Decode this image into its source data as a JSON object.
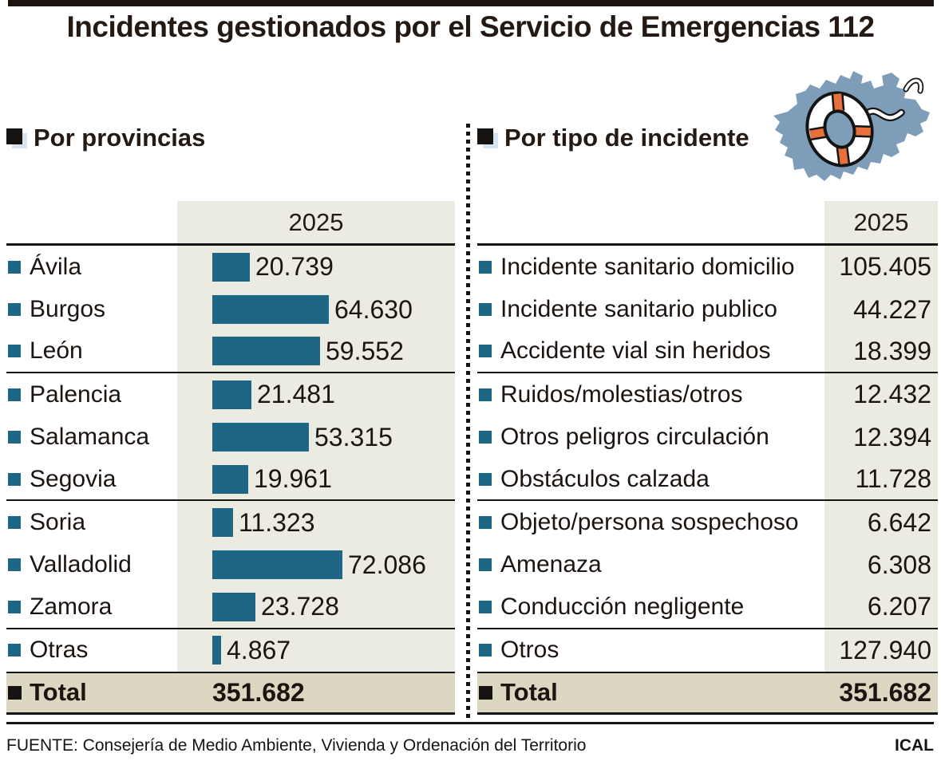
{
  "title": "Incidentes gestionados por el Servicio de Emergencias 112",
  "panels": {
    "provinces": {
      "heading": "Por provincias",
      "year": "2025",
      "rows": [
        {
          "label": "Ávila",
          "value": "20.739",
          "num": 20739
        },
        {
          "label": "Burgos",
          "value": "64.630",
          "num": 64630
        },
        {
          "label": "León",
          "value": "59.552",
          "num": 59552
        },
        {
          "label": "Palencia",
          "value": "21.481",
          "num": 21481
        },
        {
          "label": "Salamanca",
          "value": "53.315",
          "num": 53315
        },
        {
          "label": "Segovia",
          "value": "19.961",
          "num": 19961
        },
        {
          "label": "Soria",
          "value": "11.323",
          "num": 11323
        },
        {
          "label": "Valladolid",
          "value": "72.086",
          "num": 72086
        },
        {
          "label": "Zamora",
          "value": "23.728",
          "num": 23728
        },
        {
          "label": "Otras",
          "value": "4.867",
          "num": 4867
        }
      ],
      "total_label": "Total",
      "total_value": "351.682"
    },
    "incidents": {
      "heading": "Por tipo de incidente",
      "year": "2025",
      "rows": [
        {
          "label": "Incidente sanitario domicilio",
          "value": "105.405",
          "num": 105405
        },
        {
          "label": "Incidente sanitario publico",
          "value": "44.227",
          "num": 44227
        },
        {
          "label": "Accidente vial sin heridos",
          "value": "18.399",
          "num": 18399
        },
        {
          "label": "Ruidos/molestias/otros",
          "value": "12.432",
          "num": 12432
        },
        {
          "label": "Otros peligros circulación",
          "value": "12.394",
          "num": 12394
        },
        {
          "label": "Obstáculos calzada",
          "value": "11.728",
          "num": 11728
        },
        {
          "label": "Objeto/persona sospechoso",
          "value": "6.642",
          "num": 6642
        },
        {
          "label": "Amenaza",
          "value": "6.308",
          "num": 6308
        },
        {
          "label": "Conducción negligente",
          "value": "6.207",
          "num": 6207
        },
        {
          "label": "Otros",
          "value": "127.940",
          "num": 127940
        }
      ],
      "total_label": "Total",
      "total_value": "351.682"
    }
  },
  "footer": {
    "source": "FUENTE: Consejería de Medio Ambiente, Vivienda y Ordenación del Territorio",
    "credit": "ICAL"
  },
  "icons": {
    "map": "castilla-y-leon-map-with-lifebuoy"
  },
  "colors": {
    "bar_teal": "#1e6686",
    "beige_column": "#ecebe1",
    "total_row_beige": "#dbd7c1",
    "map_blue": "#7e9db8",
    "lifebuoy_orange": "#e8703a",
    "ink": "#141414"
  },
  "chart_data": [
    {
      "type": "bar",
      "orientation": "horizontal",
      "title": "Por provincias",
      "year_column": "2025",
      "categories": [
        "Ávila",
        "Burgos",
        "León",
        "Palencia",
        "Salamanca",
        "Segovia",
        "Soria",
        "Valladolid",
        "Zamora",
        "Otras"
      ],
      "values": [
        20739,
        64630,
        59552,
        21481,
        53315,
        19961,
        11323,
        72086,
        23728,
        4867
      ],
      "value_labels": [
        "20.739",
        "64.630",
        "59.552",
        "21.481",
        "53.315",
        "19.961",
        "11.323",
        "72.086",
        "23.728",
        "4.867"
      ],
      "total": 351682,
      "total_label": "351.682",
      "xlim": [
        0,
        72086
      ],
      "grid": false,
      "legend": false
    },
    {
      "type": "table",
      "title": "Por tipo de incidente",
      "year_column": "2025",
      "categories": [
        "Incidente sanitario domicilio",
        "Incidente sanitario publico",
        "Accidente vial sin heridos",
        "Ruidos/molestias/otros",
        "Otros peligros circulación",
        "Obstáculos calzada",
        "Objeto/persona sospechoso",
        "Amenaza",
        "Conducción negligente",
        "Otros"
      ],
      "values": [
        105405,
        44227,
        18399,
        12432,
        12394,
        11728,
        6642,
        6308,
        6207,
        127940
      ],
      "value_labels": [
        "105.405",
        "44.227",
        "18.399",
        "12.432",
        "12.394",
        "11.728",
        "6.642",
        "6.308",
        "6.207",
        "127.940"
      ],
      "total": 351682,
      "total_label": "351.682"
    }
  ]
}
